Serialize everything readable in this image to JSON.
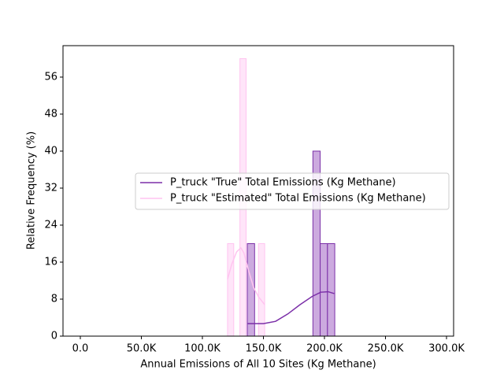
{
  "chart_data": {
    "type": "histogram",
    "x_label": "Annual Emissions of All 10 Sites (Kg Methane)",
    "y_label": "Relative Frequency (%)",
    "xlim": [
      -14200,
      305800
    ],
    "ylim": [
      0,
      62.8
    ],
    "xticks": [
      {
        "value": 0,
        "label": "0.0"
      },
      {
        "value": 50000,
        "label": "50.0K"
      },
      {
        "value": 100000,
        "label": "100.0K"
      },
      {
        "value": 150000,
        "label": "150.0K"
      },
      {
        "value": 200000,
        "label": "200.0K"
      },
      {
        "value": 250000,
        "label": "250.0K"
      },
      {
        "value": 300000,
        "label": "300.0K"
      }
    ],
    "yticks": [
      0,
      8,
      16,
      24,
      32,
      40,
      48,
      56
    ],
    "legend": "center right",
    "series": [
      {
        "name": "P_truck \"True\" Total Emissions (Kg Methane)",
        "color": "#7b2fa8",
        "fill": "#c39bd9",
        "bins": [
          136800,
          142770,
          148740,
          154710,
          160680,
          166650,
          172620,
          178590,
          184560,
          190530,
          196500,
          202470,
          208440
        ],
        "values": [
          20,
          0,
          0,
          0,
          0,
          0,
          0,
          0,
          0,
          40,
          20,
          20
        ],
        "kde_x": [
          136800,
          150000,
          160000,
          170000,
          180000,
          190000,
          197000,
          203000,
          208000
        ],
        "kde_y": [
          2.7,
          2.7,
          3.2,
          4.8,
          6.8,
          8.6,
          9.5,
          9.6,
          9.2
        ]
      },
      {
        "name": "P_truck \"Estimated\" Total Emissions (Kg Methane)",
        "color": "#ffc4f0",
        "fill": "#ffe0f8",
        "bins": [
          120600,
          125670,
          130740,
          135810,
          140880,
          145950,
          151020
        ],
        "values": [
          20,
          0,
          60,
          0,
          0,
          20
        ],
        "kde_x": [
          120600,
          124000,
          128000,
          131500,
          134000,
          138000,
          142000,
          146000,
          151000
        ],
        "kde_y": [
          12.3,
          15.5,
          18.2,
          19.1,
          18.0,
          14.0,
          10.5,
          8.5,
          6.8
        ]
      }
    ]
  }
}
